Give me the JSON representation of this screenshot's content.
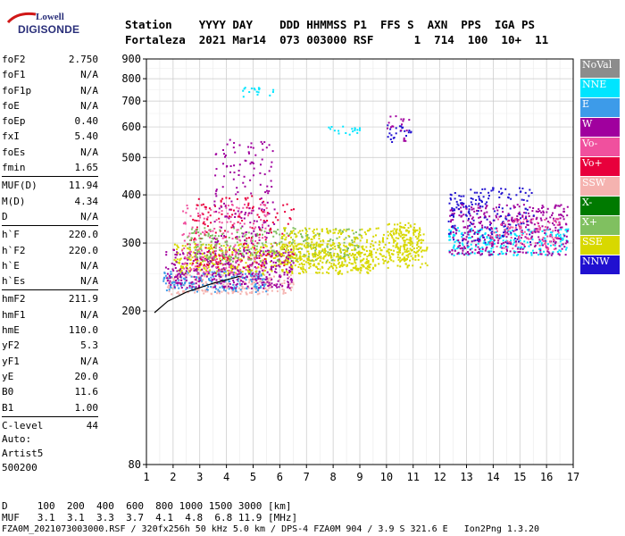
{
  "logo": {
    "line1": "Lowell",
    "line2": "DIGISONDE"
  },
  "header": {
    "row1": "Station    YYYY DAY    DDD HHMMSS P1  FFS S  AXN  PPS  IGA PS",
    "row2": "Fortaleza  2021 Mar14  073 003000 RSF      1  714  100  10+  11"
  },
  "params": [
    [
      {
        "n": "foF2",
        "v": "2.750"
      },
      {
        "n": "foF1",
        "v": "N/A"
      },
      {
        "n": "foF1p",
        "v": "N/A"
      },
      {
        "n": "foE",
        "v": "N/A"
      },
      {
        "n": "foEp",
        "v": "0.40"
      },
      {
        "n": "fxI",
        "v": "5.40"
      },
      {
        "n": "foEs",
        "v": "N/A"
      },
      {
        "n": "fmin",
        "v": "1.65"
      }
    ],
    [
      {
        "n": "MUF(D)",
        "v": "11.94"
      },
      {
        "n": "M(D)",
        "v": "4.34"
      },
      {
        "n": "D",
        "v": "N/A"
      }
    ],
    [
      {
        "n": "h`F",
        "v": "220.0"
      },
      {
        "n": "h`F2",
        "v": "220.0"
      },
      {
        "n": "h`E",
        "v": "N/A"
      },
      {
        "n": "h`Es",
        "v": "N/A"
      }
    ],
    [
      {
        "n": "hmF2",
        "v": "211.9"
      },
      {
        "n": "hmF1",
        "v": "N/A"
      },
      {
        "n": "hmE",
        "v": "110.0"
      },
      {
        "n": "yF2",
        "v": "5.3"
      },
      {
        "n": "yF1",
        "v": "N/A"
      },
      {
        "n": "yE",
        "v": "20.0"
      },
      {
        "n": "B0",
        "v": "11.6"
      },
      {
        "n": "B1",
        "v": "1.00"
      }
    ],
    [
      {
        "n": "C-level",
        "v": "44"
      }
    ]
  ],
  "auto": {
    "line1": "Auto:",
    "line2": "Artist5",
    "line3": "500200"
  },
  "footer": {
    "d_row": "D     100  200  400  600  800 1000 1500 3000 [km]",
    "muf_row": "MUF   3.1  3.1  3.3  3.7  4.1  4.8  6.8 11.9 [MHz]",
    "file_row": "FZA0M_2021073003000.RSF / 320fx256h 50 kHz 5.0 km / DPS-4 FZA0M 904 / 3.9 S 321.6 E   Ion2Png 1.3.20"
  },
  "legend": [
    {
      "label": "NoVal",
      "color": "#8c8c8c"
    },
    {
      "label": "NNE",
      "color": "#00e5ff"
    },
    {
      "label": "E",
      "color": "#3d9be9"
    },
    {
      "label": "W",
      "color": "#a0009e"
    },
    {
      "label": "Vo-",
      "color": "#f0509e"
    },
    {
      "label": "Vo+",
      "color": "#e8003c"
    },
    {
      "label": "SSW",
      "color": "#f5b3b0"
    },
    {
      "label": "X-",
      "color": "#007a00"
    },
    {
      "label": "X+",
      "color": "#80c060"
    },
    {
      "label": "SSE",
      "color": "#d8d800"
    },
    {
      "label": "NNW",
      "color": "#2010d0"
    }
  ],
  "chart_data": {
    "type": "scatter",
    "title": "",
    "xlabel": "",
    "ylabel": "",
    "xlim": [
      1,
      17
    ],
    "ylim": [
      80,
      900
    ],
    "y_scale": "log",
    "x_ticks": [
      "1",
      "2",
      "3",
      "4",
      "5",
      "6",
      "7",
      "8",
      "9",
      "10",
      "11",
      "12",
      "13",
      "14",
      "15",
      "16",
      "17"
    ],
    "y_ticks": [
      "80",
      "200",
      "300",
      "400",
      "500",
      "600",
      "700",
      "800",
      "900"
    ],
    "grid": true,
    "legend_placement": "right",
    "clusters": [
      {
        "series": "SSW",
        "x": [
          1.7,
          6.5
        ],
        "y": [
          222,
          250
        ],
        "density": 1.0
      },
      {
        "series": "E",
        "x": [
          1.6,
          5.5
        ],
        "y": [
          225,
          255
        ],
        "density": 1.0
      },
      {
        "series": "SSE",
        "x": [
          2.0,
          9.5
        ],
        "y": [
          250,
          300
        ],
        "density": 1.0
      },
      {
        "series": "W",
        "x": [
          1.7,
          6.5
        ],
        "y": [
          230,
          290
        ],
        "density": 0.8
      },
      {
        "series": "Vo-",
        "x": [
          2.3,
          5.5
        ],
        "y": [
          250,
          380
        ],
        "density": 0.4
      },
      {
        "series": "Vo+",
        "x": [
          2.5,
          6.5
        ],
        "y": [
          260,
          400
        ],
        "density": 0.25
      },
      {
        "series": "X+",
        "x": [
          2.5,
          9.0
        ],
        "y": [
          270,
          330
        ],
        "density": 0.5
      },
      {
        "series": "SSE",
        "x": [
          6.0,
          11.5
        ],
        "y": [
          260,
          330
        ],
        "density": 0.8
      },
      {
        "series": "SSE",
        "x": [
          10.0,
          11.2
        ],
        "y": [
          270,
          340
        ],
        "density": 0.9
      },
      {
        "series": "W",
        "x": [
          3.5,
          5.8
        ],
        "y": [
          300,
          560
        ],
        "density": 0.25
      },
      {
        "series": "NNE",
        "x": [
          12.3,
          16.8
        ],
        "y": [
          280,
          330
        ],
        "density": 0.8
      },
      {
        "series": "W",
        "x": [
          12.3,
          16.8
        ],
        "y": [
          280,
          380
        ],
        "density": 0.7
      },
      {
        "series": "NNW",
        "x": [
          12.3,
          15.5
        ],
        "y": [
          300,
          420
        ],
        "density": 0.4
      },
      {
        "series": "Vo-",
        "x": [
          13.8,
          16.5
        ],
        "y": [
          290,
          350
        ],
        "density": 0.5
      },
      {
        "series": "NNE",
        "x": [
          7.5,
          9.0
        ],
        "y": [
          575,
          605
        ],
        "density": 0.6
      },
      {
        "series": "NNE",
        "x": [
          4.5,
          5.8
        ],
        "y": [
          720,
          770
        ],
        "density": 0.5
      },
      {
        "series": "NNW",
        "x": [
          10.0,
          10.9
        ],
        "y": [
          550,
          610
        ],
        "density": 0.6
      },
      {
        "series": "W",
        "x": [
          10.0,
          10.9
        ],
        "y": [
          550,
          650
        ],
        "density": 0.3
      }
    ],
    "trace": {
      "x": [
        1.3,
        1.8,
        2.5,
        3.5,
        4.5
      ],
      "y": [
        198,
        212,
        224,
        236,
        246
      ]
    }
  }
}
